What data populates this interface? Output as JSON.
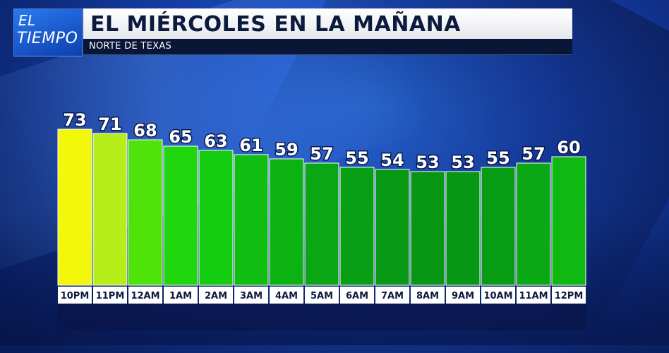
{
  "header": {
    "logo_line1": "EL",
    "logo_line2": "TIEMPO",
    "title": "EL MIÉRCOLES EN LA MAÑANA",
    "subtitle": "NORTE DE TEXAS"
  },
  "chart_data": {
    "type": "bar",
    "categories": [
      "10PM",
      "11PM",
      "12AM",
      "1AM",
      "2AM",
      "3AM",
      "4AM",
      "5AM",
      "6AM",
      "7AM",
      "8AM",
      "9AM",
      "10AM",
      "11AM",
      "12PM"
    ],
    "values": [
      73,
      71,
      68,
      65,
      63,
      61,
      59,
      57,
      55,
      54,
      53,
      53,
      55,
      57,
      60
    ],
    "colors": [
      "#f3f70a",
      "#b6ee1a",
      "#4ee40a",
      "#20d60e",
      "#14cc10",
      "#0fbe10",
      "#0cb112",
      "#0aa614",
      "#089e15",
      "#089a15",
      "#089615",
      "#089615",
      "#089c15",
      "#0aa814",
      "#10b812"
    ],
    "data_labels": true,
    "legend": "none",
    "grid": false
  }
}
